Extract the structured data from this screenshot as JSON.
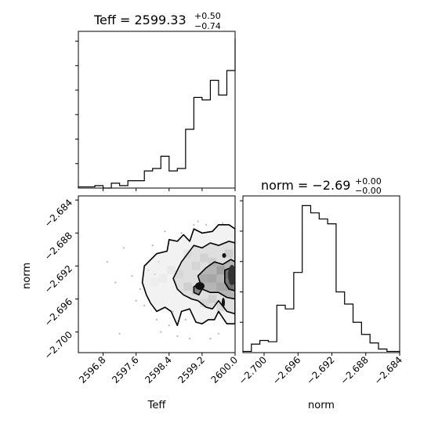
{
  "chart_data": {
    "type": "corner",
    "parameters": [
      "Teff",
      "norm"
    ],
    "titles": {
      "teff": {
        "prefix": "Teff = 2599.33",
        "upper": "+0.50",
        "lower": "−0.74"
      },
      "norm": {
        "prefix": "norm = −2.69",
        "upper": "+0.00",
        "lower": "−0.00"
      }
    },
    "teff_hist": {
      "xlim": [
        2596.2,
        2600.0
      ],
      "bin_edges": [
        2596.2,
        2596.4,
        2596.6,
        2596.8,
        2597.0,
        2597.2,
        2597.4,
        2597.6,
        2597.8,
        2598.0,
        2598.2,
        2598.4,
        2598.6,
        2598.8,
        2599.0,
        2599.2,
        2599.4,
        2599.6,
        2599.8,
        2600.0
      ],
      "counts": [
        0.5,
        0.5,
        1,
        0,
        2,
        1,
        3,
        3,
        7,
        8,
        13,
        7,
        8,
        24,
        37,
        36,
        44,
        38,
        48,
        61
      ]
    },
    "norm_hist": {
      "xlim": [
        -2.7025,
        -2.684
      ],
      "bin_edges": [
        -2.7025,
        -2.7015,
        -2.7005,
        -2.6995,
        -2.6985,
        -2.6975,
        -2.6965,
        -2.6955,
        -2.6945,
        -2.6935,
        -2.6925,
        -2.6915,
        -2.6905,
        -2.6895,
        -2.6885,
        -2.6875,
        -2.6865,
        -2.6855,
        -2.684
      ],
      "counts": [
        1,
        7,
        10,
        9,
        39,
        36,
        66,
        121,
        115,
        110,
        106,
        50,
        40,
        25,
        15,
        8,
        3,
        1
      ]
    },
    "joint": {
      "xlabel": "Teff",
      "ylabel": "norm",
      "xlim": [
        2596.2,
        2600.0
      ],
      "ylim": [
        -2.7025,
        -2.6835
      ],
      "xticks": [
        2596.8,
        2597.6,
        2598.4,
        2599.2,
        2600.0
      ],
      "xtick_labels": [
        "2596.8",
        "2597.6",
        "2598.4",
        "2599.2",
        "2600.0"
      ],
      "yticks": [
        -2.684,
        -2.688,
        -2.692,
        -2.696,
        -2.7
      ],
      "ytick_labels": [
        "−2.684",
        "−2.688",
        "−2.692",
        "−2.696",
        "−2.700"
      ],
      "scatter": [
        [
          2597.3,
          -2.6898
        ],
        [
          2597.5,
          -2.6932
        ],
        [
          2597.8,
          -2.6968
        ],
        [
          2597.9,
          -2.6925
        ],
        [
          2598.0,
          -2.6895
        ],
        [
          2598.1,
          -2.6985
        ],
        [
          2598.2,
          -2.7
        ],
        [
          2598.3,
          -2.6878
        ],
        [
          2598.4,
          -2.6992
        ],
        [
          2598.5,
          -2.6975
        ],
        [
          2598.6,
          -2.7005
        ],
        [
          2598.7,
          -2.688
        ],
        [
          2598.8,
          -2.6985
        ],
        [
          2598.9,
          -2.7008
        ],
        [
          2599.0,
          -2.687
        ],
        [
          2599.1,
          -2.6866
        ],
        [
          2599.3,
          -2.687
        ],
        [
          2599.4,
          -2.7008
        ],
        [
          2599.6,
          -2.7002
        ],
        [
          2599.7,
          -2.6868
        ],
        [
          2597.6,
          -2.6962
        ],
        [
          2597.7,
          -2.6948
        ],
        [
          2598.05,
          -2.693
        ],
        [
          2598.15,
          -2.6915
        ],
        [
          2596.9,
          -2.6915
        ],
        [
          2597.2,
          -2.7002
        ],
        [
          2597.1,
          -2.694
        ],
        [
          2599.85,
          -2.699
        ]
      ],
      "density_cells": [
        {
          "teff": 2599.45,
          "norm": -2.6935,
          "level": 0.55
        },
        {
          "teff": 2599.65,
          "norm": -2.6925,
          "level": 0.75
        },
        {
          "teff": 2599.85,
          "norm": -2.693,
          "level": 0.85
        },
        {
          "teff": 2599.85,
          "norm": -2.6945,
          "level": 0.65
        },
        {
          "teff": 2599.65,
          "norm": -2.6945,
          "level": 0.5
        },
        {
          "teff": 2599.25,
          "norm": -2.6935,
          "level": 0.4
        },
        {
          "teff": 2599.05,
          "norm": -2.695,
          "level": 0.35
        },
        {
          "teff": 2598.85,
          "norm": -2.6945,
          "level": 0.3
        },
        {
          "teff": 2599.45,
          "norm": -2.6915,
          "level": 0.3
        },
        {
          "teff": 2599.25,
          "norm": -2.691,
          "level": 0.25
        },
        {
          "teff": 2599.05,
          "norm": -2.692,
          "level": 0.2
        },
        {
          "teff": 2598.65,
          "norm": -2.693,
          "level": 0.15
        },
        {
          "teff": 2598.45,
          "norm": -2.6925,
          "level": 0.1
        },
        {
          "teff": 2599.45,
          "norm": -2.696,
          "level": 0.3
        },
        {
          "teff": 2599.25,
          "norm": -2.6965,
          "level": 0.2
        },
        {
          "teff": 2599.65,
          "norm": -2.697,
          "level": 0.25
        },
        {
          "teff": 2599.85,
          "norm": -2.6905,
          "level": 0.35
        },
        {
          "teff": 2598.25,
          "norm": -2.6935,
          "level": 0.08
        },
        {
          "teff": 2598.05,
          "norm": -2.694,
          "level": 0.06
        },
        {
          "teff": 2598.85,
          "norm": -2.6905,
          "level": 0.12
        }
      ],
      "contours": [
        [
          [
            2597.8,
            -2.692
          ],
          [
            2598.1,
            -2.6905
          ],
          [
            2598.35,
            -2.6902
          ],
          [
            2598.4,
            -2.6888
          ],
          [
            2598.6,
            -2.689
          ],
          [
            2598.75,
            -2.6882
          ],
          [
            2598.9,
            -2.689
          ],
          [
            2599.0,
            -2.6875
          ],
          [
            2599.2,
            -2.688
          ],
          [
            2599.45,
            -2.6878
          ],
          [
            2599.6,
            -2.687
          ],
          [
            2599.85,
            -2.687
          ],
          [
            2600.0,
            -2.6875
          ],
          [
            2600.0,
            -2.699
          ],
          [
            2599.8,
            -2.699
          ],
          [
            2599.6,
            -2.6975
          ],
          [
            2599.5,
            -2.6985
          ],
          [
            2599.35,
            -2.6985
          ],
          [
            2599.2,
            -2.699
          ],
          [
            2599.05,
            -2.6988
          ],
          [
            2598.9,
            -2.6972
          ],
          [
            2598.7,
            -2.6975
          ],
          [
            2598.6,
            -2.6992
          ],
          [
            2598.45,
            -2.6975
          ],
          [
            2598.3,
            -2.697
          ],
          [
            2598.1,
            -2.6975
          ],
          [
            2597.95,
            -2.6965
          ],
          [
            2597.85,
            -2.6955
          ],
          [
            2597.75,
            -2.694
          ],
          [
            2597.8,
            -2.692
          ]
        ],
        [
          [
            2598.5,
            -2.6935
          ],
          [
            2598.7,
            -2.6915
          ],
          [
            2598.85,
            -2.6905
          ],
          [
            2599.0,
            -2.6895
          ],
          [
            2599.2,
            -2.6898
          ],
          [
            2599.4,
            -2.6892
          ],
          [
            2599.6,
            -2.6895
          ],
          [
            2599.85,
            -2.689
          ],
          [
            2600.0,
            -2.6892
          ],
          [
            2600.0,
            -2.6978
          ],
          [
            2599.8,
            -2.6975
          ],
          [
            2599.6,
            -2.6962
          ],
          [
            2599.45,
            -2.6972
          ],
          [
            2599.3,
            -2.697
          ],
          [
            2599.1,
            -2.6962
          ],
          [
            2598.95,
            -2.696
          ],
          [
            2598.75,
            -2.6955
          ],
          [
            2598.6,
            -2.6948
          ],
          [
            2598.5,
            -2.6935
          ]
        ],
        [
          [
            2599.1,
            -2.6932
          ],
          [
            2599.3,
            -2.6922
          ],
          [
            2599.5,
            -2.6915
          ],
          [
            2599.7,
            -2.6918
          ],
          [
            2599.9,
            -2.6912
          ],
          [
            2600.0,
            -2.6915
          ],
          [
            2600.0,
            -2.696
          ],
          [
            2599.8,
            -2.6958
          ],
          [
            2599.6,
            -2.6952
          ],
          [
            2599.4,
            -2.6952
          ],
          [
            2599.2,
            -2.6948
          ],
          [
            2599.1,
            -2.6932
          ]
        ],
        [
          [
            2599.75,
            -2.6925
          ],
          [
            2599.9,
            -2.6922
          ],
          [
            2600.0,
            -2.6924
          ],
          [
            2600.0,
            -2.695
          ],
          [
            2599.85,
            -2.6948
          ],
          [
            2599.75,
            -2.694
          ],
          [
            2599.75,
            -2.6925
          ]
        ],
        [
          [
            2599.0,
            -2.6945
          ],
          [
            2599.12,
            -2.6942
          ],
          [
            2599.2,
            -2.6948
          ],
          [
            2599.12,
            -2.6955
          ],
          [
            2599.0,
            -2.6952
          ],
          [
            2599.0,
            -2.6945
          ]
        ]
      ]
    }
  }
}
